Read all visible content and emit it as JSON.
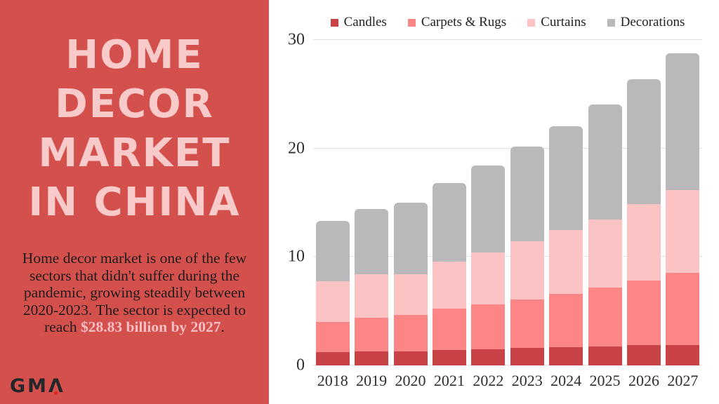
{
  "sidebar": {
    "bg_color": "#d3504d",
    "title_lines": [
      "HOME",
      "DECOR",
      "MARKET",
      "IN CHINA"
    ],
    "title_color": "#f8caca",
    "description_text": "Home decor market is one of the few sectors that didn't suffer during the pandemic, growing steadily between 2020-2023. The sector is expected to reach ",
    "description_highlight": "$28.83 billion by 2027",
    "description_period": ".",
    "highlight_color": "#f6bfc2",
    "logo_text_gm": "GM",
    "logo_text_a": "Λ",
    "logo_dot_color": "#da251c"
  },
  "chart_data": {
    "type": "bar",
    "stacked": true,
    "title": "",
    "xlabel": "",
    "ylabel": "",
    "categories": [
      "2018",
      "2019",
      "2020",
      "2021",
      "2022",
      "2023",
      "2024",
      "2025",
      "2026",
      "2027"
    ],
    "series": [
      {
        "name": "Candles",
        "color": "#c84246",
        "values": [
          1.2,
          1.3,
          1.3,
          1.45,
          1.5,
          1.6,
          1.7,
          1.75,
          1.85,
          1.9
        ]
      },
      {
        "name": "Carpets & Rugs",
        "color": "#fc8685",
        "values": [
          2.8,
          3.1,
          3.35,
          3.8,
          4.15,
          4.45,
          4.9,
          5.4,
          6.0,
          6.65
        ]
      },
      {
        "name": "Curtains",
        "color": "#fcc3c5",
        "values": [
          3.75,
          4.0,
          3.75,
          4.35,
          4.75,
          5.4,
          5.85,
          6.3,
          7.05,
          7.6
        ]
      },
      {
        "name": "Decorations",
        "color": "#b9b9bb",
        "values": [
          5.55,
          6.0,
          6.6,
          7.2,
          8.0,
          8.75,
          9.6,
          10.6,
          11.5,
          12.65
        ]
      }
    ],
    "totals": [
      13.3,
      14.4,
      15.0,
      16.8,
      18.4,
      20.2,
      22.05,
      24.05,
      26.4,
      28.8
    ],
    "ylim": [
      0,
      30
    ],
    "yticks": [
      0,
      10,
      20,
      30
    ],
    "grid": true,
    "legend_position": "top"
  }
}
